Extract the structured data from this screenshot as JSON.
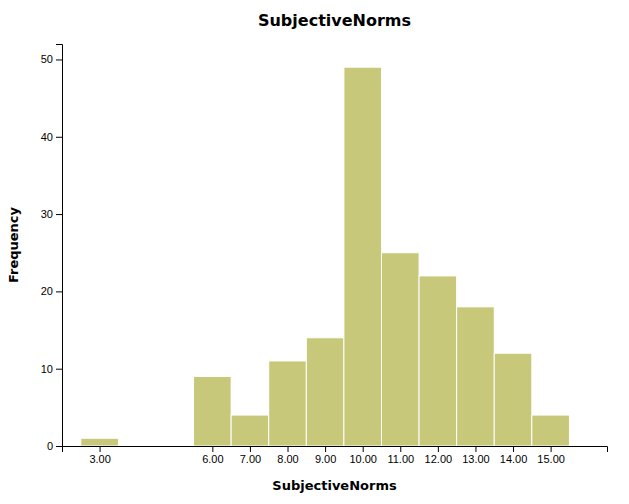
{
  "chart_data": {
    "type": "bar",
    "title": "SubjectiveNorms",
    "xlabel": "SubjectiveNorms",
    "ylabel": "Frequency",
    "x": [
      3.0,
      6.0,
      7.0,
      8.0,
      9.0,
      10.0,
      11.0,
      12.0,
      13.0,
      14.0,
      15.0
    ],
    "values": [
      1,
      9,
      4,
      11,
      14,
      49,
      25,
      22,
      18,
      12,
      4
    ],
    "color": "#c8c87a",
    "xlim": [
      2.0,
      16.5
    ],
    "xticks": [
      {
        "value": 3.0,
        "label": "3.00"
      },
      {
        "value": 6.0,
        "label": "6.00"
      },
      {
        "value": 7.0,
        "label": "7.00"
      },
      {
        "value": 8.0,
        "label": "8.00"
      },
      {
        "value": 9.0,
        "label": "9.00"
      },
      {
        "value": 10.0,
        "label": "10.00"
      },
      {
        "value": 11.0,
        "label": "11.00"
      },
      {
        "value": 12.0,
        "label": "12.00"
      },
      {
        "value": 13.0,
        "label": "13.00"
      },
      {
        "value": 14.0,
        "label": "14.00"
      },
      {
        "value": 15.0,
        "label": "15.00"
      }
    ],
    "ylim": [
      0,
      52
    ],
    "yticks": [
      0,
      10,
      20,
      30,
      40,
      50
    ],
    "grid": false
  }
}
